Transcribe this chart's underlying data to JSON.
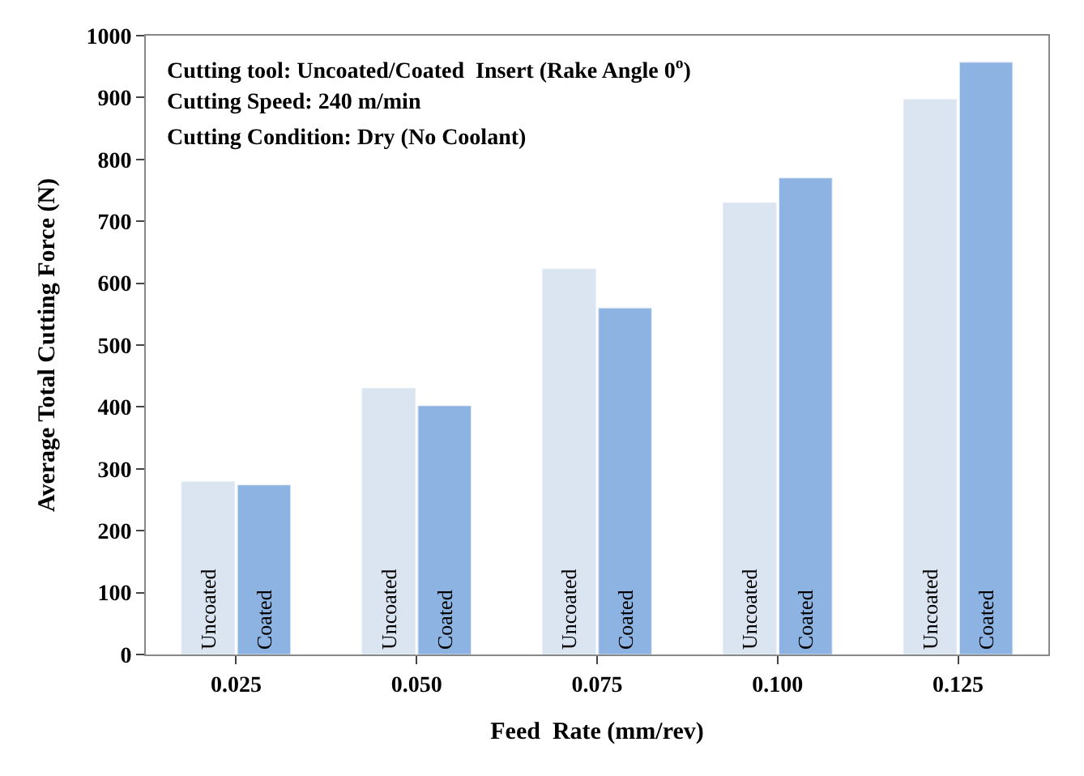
{
  "chart_data": {
    "type": "bar",
    "xlabel": "Feed  Rate (mm/rev)",
    "ylabel": "Average Total Cutting Force (N)",
    "categories": [
      "0.025",
      "0.050",
      "0.075",
      "0.100",
      "0.125"
    ],
    "series": [
      {
        "name": "Uncoated",
        "color": "#dbe5f1",
        "values": [
          279,
          430,
          623,
          730,
          897
        ]
      },
      {
        "name": "Coated",
        "color": "#8db3e2",
        "values": [
          274,
          402,
          560,
          770,
          957
        ]
      }
    ],
    "annotations": [
      "Cutting tool: Uncoated/Coated  Insert (Rake Angle 0$^{o}$)",
      "Cutting Speed: 240 m/min",
      "Cutting Condition: Dry (No Coolant)"
    ],
    "ylim": [
      0,
      1000
    ],
    "yticks": [
      0,
      100,
      200,
      300,
      400,
      500,
      600,
      700,
      800,
      900,
      1000
    ]
  }
}
